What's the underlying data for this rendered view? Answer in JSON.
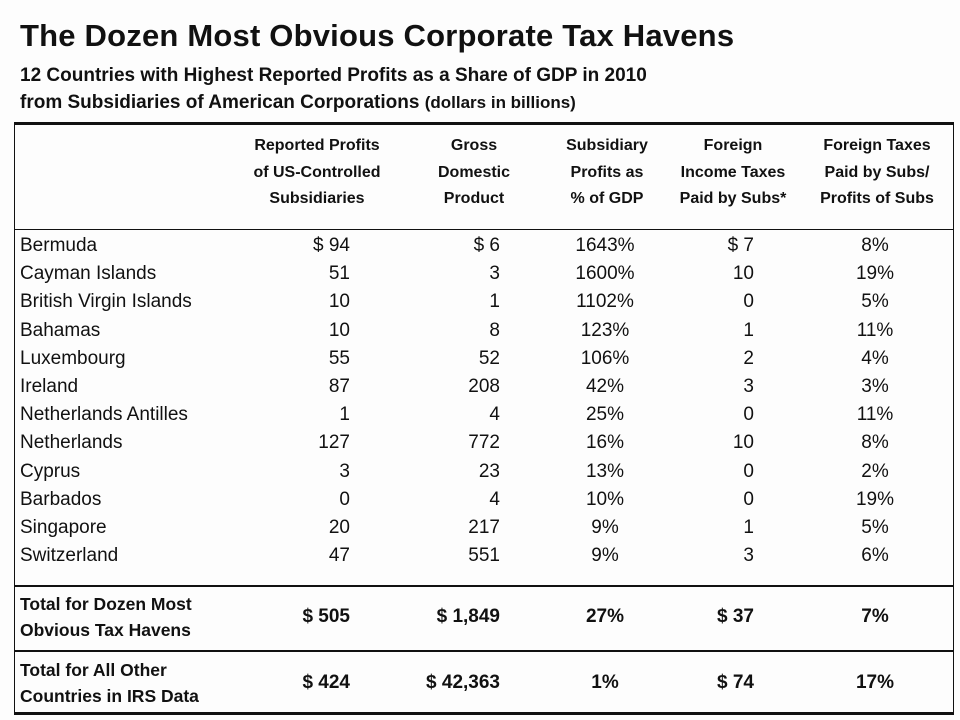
{
  "title": "The Dozen Most Obvious Corporate Tax Havens",
  "subtitle_line1": "12 Countries with Highest Reported Profits as a Share of GDP in 2010",
  "subtitle_line2": "from Subsidiaries of American Corporations",
  "subtitle_note": "(dollars in billions)",
  "headers": [
    [
      "Reported Profits",
      "of US-Controlled",
      "Subsidiaries"
    ],
    [
      "Gross",
      "Domestic",
      "Product"
    ],
    [
      "Subsidiary",
      "Profits as",
      "% of GDP"
    ],
    [
      "Foreign",
      "Income Taxes",
      "Paid by Subs*"
    ],
    [
      "Foreign Taxes",
      "Paid by Subs/",
      "Profits of Subs"
    ]
  ],
  "rows": [
    [
      "Bermuda",
      "$ 94",
      "$ 6",
      "1643%",
      "$ 7",
      "8%"
    ],
    [
      "Cayman Islands",
      "51",
      "3",
      "1600%",
      "10",
      "19%"
    ],
    [
      "British Virgin Islands",
      "10",
      "1",
      "1102%",
      "0",
      "5%"
    ],
    [
      "Bahamas",
      "10",
      "8",
      "123%",
      "1",
      "11%"
    ],
    [
      "Luxembourg",
      "55",
      "52",
      "106%",
      "2",
      "4%"
    ],
    [
      "Ireland",
      "87",
      "208",
      "42%",
      "3",
      "3%"
    ],
    [
      "Netherlands Antilles",
      "1",
      "4",
      "25%",
      "0",
      "11%"
    ],
    [
      "Netherlands",
      "127",
      "772",
      "16%",
      "10",
      "8%"
    ],
    [
      "Cyprus",
      "3",
      "23",
      "13%",
      "0",
      "2%"
    ],
    [
      "Barbados",
      "0",
      "4",
      "10%",
      "0",
      "19%"
    ],
    [
      "Singapore",
      "20",
      "217",
      "9%",
      "1",
      "5%"
    ],
    [
      "Switzerland",
      "47",
      "551",
      "9%",
      "3",
      "6%"
    ]
  ],
  "totals": [
    {
      "label": [
        "Total for Dozen Most",
        "Obvious Tax Havens"
      ],
      "values": [
        "$ 505",
        "$ 1,849",
        "27%",
        "$ 37",
        "7%"
      ]
    },
    {
      "label": [
        "Total for All Other",
        "Countries in IRS Data"
      ],
      "values": [
        "$ 424",
        "$ 42,363",
        "1%",
        "$ 74",
        "17%"
      ]
    }
  ]
}
